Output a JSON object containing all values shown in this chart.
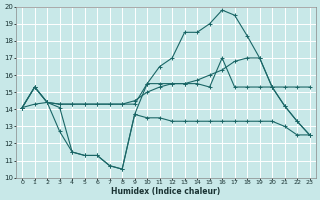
{
  "title": "",
  "xlabel": "Humidex (Indice chaleur)",
  "bg_color": "#c8e8e8",
  "line_color": "#1a6666",
  "grid_color": "#ffffff",
  "xlim": [
    -0.5,
    23.5
  ],
  "ylim": [
    10,
    20
  ],
  "yticks": [
    10,
    11,
    12,
    13,
    14,
    15,
    16,
    17,
    18,
    19,
    20
  ],
  "xticks": [
    0,
    1,
    2,
    3,
    4,
    5,
    6,
    7,
    8,
    9,
    10,
    11,
    12,
    13,
    14,
    15,
    16,
    17,
    18,
    19,
    20,
    21,
    22,
    23
  ],
  "lines": [
    {
      "x": [
        0,
        1,
        2,
        3,
        4,
        5,
        6,
        7,
        8,
        9,
        10,
        11,
        12,
        13,
        14,
        15,
        16,
        17,
        18,
        19,
        20,
        21,
        22,
        23
      ],
      "y": [
        14.1,
        15.3,
        14.4,
        14.1,
        11.5,
        11.3,
        11.3,
        10.7,
        10.5,
        13.7,
        15.5,
        15.5,
        15.5,
        15.5,
        15.5,
        15.3,
        17.0,
        15.3,
        15.3,
        15.3,
        15.3,
        15.3,
        15.3,
        15.3
      ]
    },
    {
      "x": [
        0,
        1,
        2,
        3,
        4,
        5,
        6,
        7,
        8,
        9,
        10,
        11,
        12,
        13,
        14,
        15,
        16,
        17,
        18,
        19,
        20,
        21,
        22,
        23
      ],
      "y": [
        14.1,
        15.3,
        14.4,
        14.3,
        14.3,
        14.3,
        14.3,
        14.3,
        14.3,
        14.5,
        15.0,
        15.3,
        15.5,
        15.5,
        15.7,
        16.0,
        16.3,
        16.8,
        17.0,
        17.0,
        15.3,
        14.2,
        13.3,
        12.5
      ]
    },
    {
      "x": [
        0,
        1,
        2,
        3,
        4,
        5,
        6,
        7,
        8,
        9,
        10,
        11,
        12,
        13,
        14,
        15,
        16,
        17,
        18,
        19,
        20,
        21,
        22,
        23
      ],
      "y": [
        14.1,
        15.3,
        14.4,
        14.3,
        14.3,
        14.3,
        14.3,
        14.3,
        14.3,
        14.3,
        15.5,
        16.5,
        17.0,
        18.5,
        18.5,
        19.0,
        19.8,
        19.5,
        18.3,
        17.0,
        15.3,
        14.2,
        13.3,
        12.5
      ]
    },
    {
      "x": [
        0,
        1,
        2,
        3,
        4,
        5,
        6,
        7,
        8,
        9,
        10,
        11,
        12,
        13,
        14,
        15,
        16,
        17,
        18,
        19,
        20,
        21,
        22,
        23
      ],
      "y": [
        14.1,
        14.3,
        14.4,
        12.7,
        11.5,
        11.3,
        11.3,
        10.7,
        10.5,
        13.7,
        13.5,
        13.5,
        13.3,
        13.3,
        13.3,
        13.3,
        13.3,
        13.3,
        13.3,
        13.3,
        13.3,
        13.0,
        12.5,
        12.5
      ]
    }
  ]
}
